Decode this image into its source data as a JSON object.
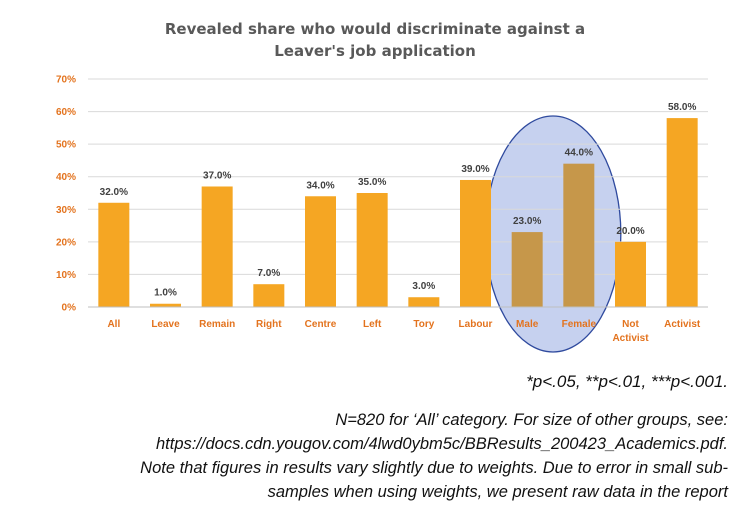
{
  "chart_data": {
    "type": "bar",
    "title": "Revealed share who would discriminate against a",
    "title_line2": "Leaver's job application",
    "categories": [
      "All",
      "Leave",
      "Remain",
      "Right",
      "Centre",
      "Left",
      "Tory",
      "Labour",
      "Male",
      "Female",
      "Not Activist",
      "Activist"
    ],
    "values": [
      32.0,
      1.0,
      37.0,
      7.0,
      34.0,
      35.0,
      3.0,
      39.0,
      23.0,
      44.0,
      20.0,
      58.0
    ],
    "value_labels": [
      "32.0%",
      "1.0%",
      "37.0%",
      "7.0%",
      "34.0%",
      "35.0%",
      "3.0%",
      "39.0%",
      "23.0%",
      "44.0%",
      "20.0%",
      "58.0%"
    ],
    "y_ticks": [
      "0%",
      "10%",
      "20%",
      "30%",
      "40%",
      "50%",
      "60%",
      "70%"
    ],
    "ylim": [
      0,
      70
    ],
    "grid": true,
    "highlight": [
      "Male",
      "Female"
    ],
    "colors": {
      "bar": "#F5A623",
      "bar_highlight": "#C6974A",
      "axis_text": "#E3731E",
      "value_text": "#404040",
      "grid": "#D9D9D9",
      "ellipse_fill": "#AEBDE8",
      "ellipse_stroke": "#2F4A9E"
    }
  },
  "notes": {
    "pvalues": "*p<.05, **p<.01, ***p<.001.",
    "footnote_lines": [
      "N=820 for ‘All’ category. For size of other groups, see:",
      "https://docs.cdn.yougov.com/4lwd0ybm5c/BBResults_200423_Academics.pdf.",
      "Note that figures in results vary slightly due to weights. Due to error in small sub-",
      "samples when using weights, we present raw data in the report"
    ]
  }
}
